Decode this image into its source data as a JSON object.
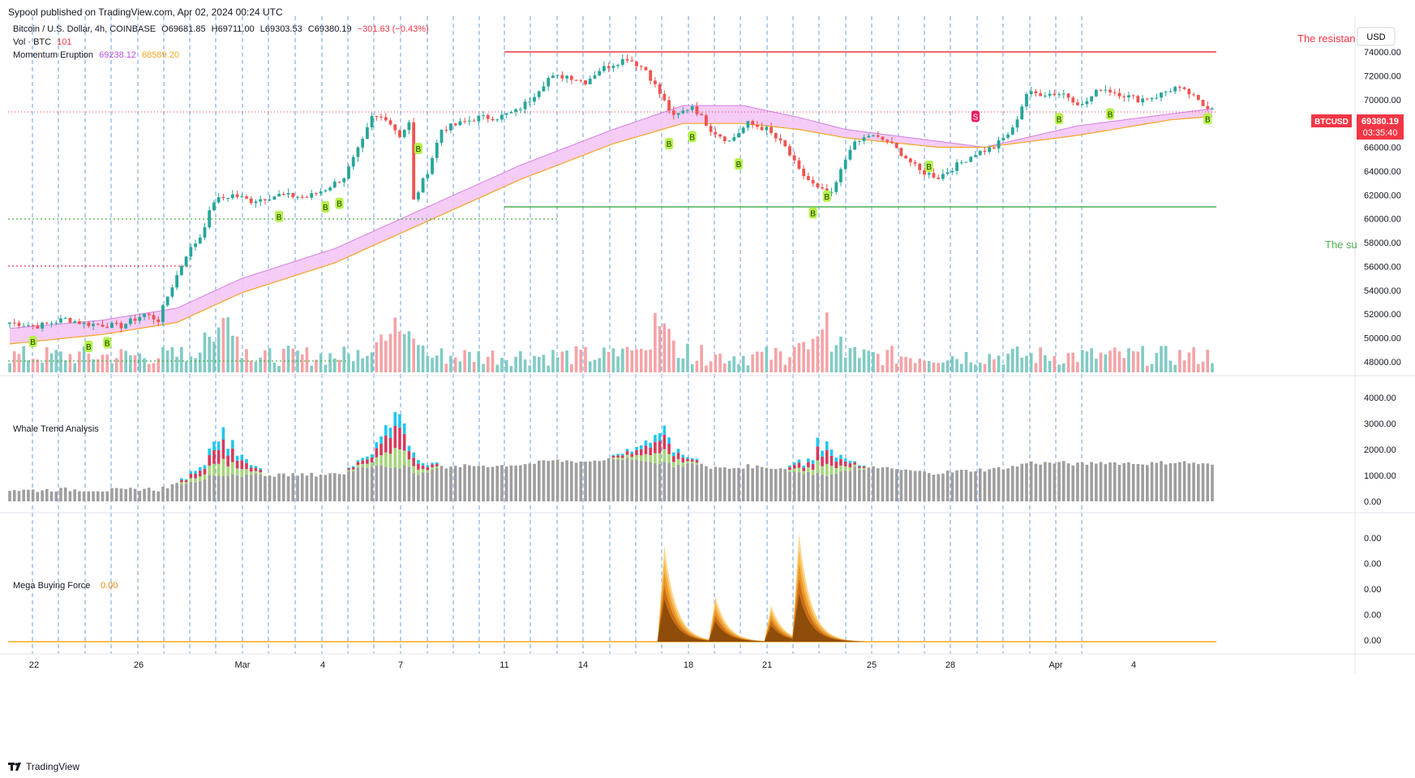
{
  "header": {
    "published": "Sypool published on TradingView.com, Apr 02, 2024 00:24 UTC"
  },
  "legend": {
    "symbol": "Bitcoin / U.S. Dollar, 4h, COINBASE",
    "open": "O69681.85",
    "high": "H69711.00",
    "low": "L69303.53",
    "close": "C69380.19",
    "change": "−301.63 (−0.43%)",
    "vol_label": "Vol · BTC",
    "vol_value": "101",
    "ind_label": "Momentum Eruption",
    "ind_v1": "69238.12",
    "ind_v2": "68589.20"
  },
  "currency": "USD",
  "price_axis": [
    "74000.00",
    "72000.00",
    "70000.00",
    "68000.00",
    "66000.00",
    "64000.00",
    "62000.00",
    "60000.00",
    "58000.00",
    "56000.00",
    "54000.00",
    "52000.00",
    "50000.00",
    "48000.00"
  ],
  "price_tag": {
    "symbol": "BTCUSD",
    "price": "69380.19",
    "countdown": "03:35:40"
  },
  "annotations": {
    "resistance": "The resistan",
    "support": "The su"
  },
  "whale": {
    "title": "Whale Trend Analysis",
    "axis": [
      "4000.00",
      "3000.00",
      "2000.00",
      "1000.00",
      "0.00"
    ]
  },
  "mega": {
    "title": "Mega Buying Force",
    "value": "0.00",
    "axis": [
      "0.00",
      "0.00",
      "0.00",
      "0.00",
      "0.00"
    ]
  },
  "time_axis": [
    "22",
    "26",
    "Mar",
    "4",
    "7",
    "11",
    "14",
    "18",
    "21",
    "25",
    "28",
    "Apr",
    "4"
  ],
  "brand": "TradingView",
  "colors": {
    "up": "#26a69a",
    "down": "#ef5350",
    "volUp": "#80cbc4",
    "volDown": "#f4a3a6",
    "band": "#f3c7f5",
    "resistance": "#f23645",
    "support": "#4caf50",
    "buyBadge": "#b6f04a",
    "sellBadge": "#e91e63",
    "grid": "#3d7bd9"
  },
  "signals": {
    "buy": "B",
    "sell": "S"
  },
  "chart_data": {
    "type": "candlestick",
    "title": "Bitcoin / U.S. Dollar, 4h, COINBASE",
    "y_range": [
      47000,
      75500
    ],
    "x_dates": [
      "Feb 22",
      "Feb 26",
      "Mar 1",
      "Mar 4",
      "Mar 7",
      "Mar 11",
      "Mar 14",
      "Mar 18",
      "Mar 21",
      "Mar 25",
      "Mar 28",
      "Apr 1",
      "Apr 4"
    ],
    "close_path": [
      [
        0,
        51300
      ],
      [
        6,
        51000
      ],
      [
        12,
        51600
      ],
      [
        16,
        51200
      ],
      [
        24,
        51000
      ],
      [
        29,
        52000
      ],
      [
        32,
        51500
      ],
      [
        34,
        53500
      ],
      [
        38,
        57000
      ],
      [
        41,
        58500
      ],
      [
        44,
        61500
      ],
      [
        48,
        62000
      ],
      [
        52,
        61500
      ],
      [
        58,
        62000
      ],
      [
        64,
        61800
      ],
      [
        68,
        62500
      ],
      [
        72,
        63500
      ],
      [
        76,
        66500
      ],
      [
        78,
        68500
      ],
      [
        81,
        68500
      ],
      [
        84,
        67000
      ],
      [
        86,
        68000
      ],
      [
        87,
        61500
      ],
      [
        90,
        64000
      ],
      [
        93,
        67500
      ],
      [
        97,
        68000
      ],
      [
        101,
        68500
      ],
      [
        105,
        68500
      ],
      [
        109,
        69000
      ],
      [
        112,
        70000
      ],
      [
        116,
        71800
      ],
      [
        120,
        72000
      ],
      [
        124,
        71500
      ],
      [
        127,
        72500
      ],
      [
        133,
        73500
      ],
      [
        137,
        72500
      ],
      [
        140,
        70500
      ],
      [
        143,
        68500
      ],
      [
        147,
        69500
      ],
      [
        151,
        67500
      ],
      [
        155,
        66500
      ],
      [
        159,
        68000
      ],
      [
        163,
        67500
      ],
      [
        167,
        66000
      ],
      [
        170,
        64000
      ],
      [
        174,
        62500
      ],
      [
        177,
        62000
      ],
      [
        181,
        66000
      ],
      [
        185,
        67000
      ],
      [
        189,
        66500
      ],
      [
        192,
        65500
      ],
      [
        196,
        64000
      ],
      [
        200,
        63500
      ],
      [
        204,
        64500
      ],
      [
        208,
        65500
      ],
      [
        212,
        66000
      ],
      [
        216,
        67500
      ],
      [
        219,
        70500
      ],
      [
        223,
        70500
      ],
      [
        227,
        70500
      ],
      [
        231,
        69500
      ],
      [
        235,
        71000
      ],
      [
        239,
        70500
      ],
      [
        243,
        70000
      ],
      [
        247,
        70300
      ],
      [
        251,
        71000
      ],
      [
        254,
        70500
      ],
      [
        257,
        69500
      ],
      [
        259,
        69380
      ]
    ],
    "band_upper": [
      [
        0,
        50800
      ],
      [
        20,
        51500
      ],
      [
        36,
        52500
      ],
      [
        50,
        55000
      ],
      [
        70,
        57500
      ],
      [
        90,
        61000
      ],
      [
        110,
        64500
      ],
      [
        130,
        67500
      ],
      [
        145,
        69500
      ],
      [
        158,
        69500
      ],
      [
        170,
        68500
      ],
      [
        180,
        67500
      ],
      [
        200,
        66500
      ],
      [
        210,
        66000
      ],
      [
        230,
        67800
      ],
      [
        250,
        68800
      ],
      [
        259,
        69240
      ]
    ],
    "band_lower": [
      [
        0,
        49500
      ],
      [
        20,
        50300
      ],
      [
        36,
        51300
      ],
      [
        50,
        53800
      ],
      [
        70,
        56300
      ],
      [
        90,
        59800
      ],
      [
        110,
        63300
      ],
      [
        130,
        66300
      ],
      [
        145,
        68000
      ],
      [
        158,
        68000
      ],
      [
        170,
        67500
      ],
      [
        180,
        66800
      ],
      [
        200,
        66000
      ],
      [
        210,
        66000
      ],
      [
        230,
        67000
      ],
      [
        250,
        68300
      ],
      [
        259,
        68590
      ]
    ],
    "buy_signals": [
      [
        5,
        49700
      ],
      [
        17,
        49300
      ],
      [
        21,
        49600
      ],
      [
        58,
        60200
      ],
      [
        68,
        61000
      ],
      [
        71,
        61300
      ],
      [
        88,
        65900
      ],
      [
        142,
        66300
      ],
      [
        147,
        66900
      ],
      [
        157,
        64600
      ],
      [
        173,
        60500
      ],
      [
        176,
        61900
      ],
      [
        198,
        64400
      ],
      [
        226,
        68400
      ],
      [
        237,
        68800
      ],
      [
        258,
        68400
      ]
    ],
    "sell_signals": [
      [
        208,
        68600
      ]
    ],
    "resistance": 74000,
    "support": 61000,
    "volume_peaks": [
      [
        46,
        6000
      ],
      [
        83,
        7000
      ],
      [
        140,
        5000
      ],
      [
        175,
        4200
      ]
    ],
    "whale_range": [
      0,
      4500
    ],
    "mega_spikes": [
      [
        141,
        0.85
      ],
      [
        152,
        0.4
      ],
      [
        164,
        0.32
      ],
      [
        170,
        0.95
      ]
    ]
  }
}
